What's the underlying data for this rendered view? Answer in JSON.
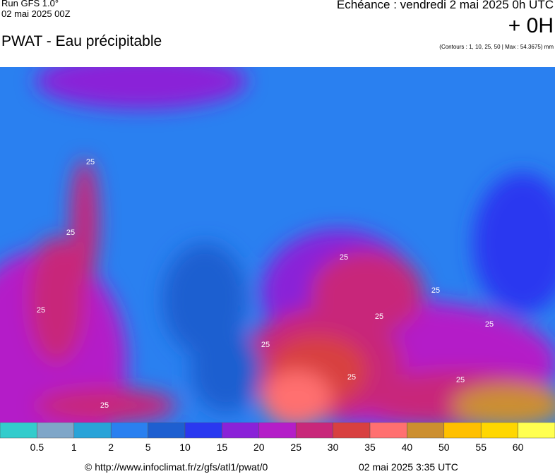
{
  "header": {
    "run": "Run GFS 1.0°",
    "run_date": "02 mai 2025 00Z",
    "title": "PWAT - Eau précipitable",
    "valid_time": "Echéance : vendredi 2 mai 2025 0h UTC",
    "lead": "+ 0H",
    "contours_note": "(Contours : 1, 10, 25, 50 | Max : 54.3675) mm"
  },
  "map": {
    "contour_labels": [
      "25",
      "25",
      "25",
      "25",
      "25",
      "25",
      "25",
      "25",
      "25",
      "25",
      "25"
    ]
  },
  "legend": {
    "colors": [
      "#33cccc",
      "#7fa6c8",
      "#29a3d8",
      "#2a80f0",
      "#1e5fd0",
      "#2a38f0",
      "#8a22d8",
      "#b41ec8",
      "#c8287a",
      "#d84040",
      "#ff7070",
      "#cc8f30",
      "#ffc000",
      "#ffd700",
      "#ffff50"
    ],
    "ticks": [
      0.5,
      1,
      2,
      5,
      10,
      15,
      20,
      25,
      30,
      35,
      40,
      50,
      55,
      60
    ]
  },
  "footer": {
    "url": "© http://www.infoclimat.fr/z/gfs/atl1/pwat/0",
    "generated": "02 mai 2025  3:35 UTC"
  }
}
